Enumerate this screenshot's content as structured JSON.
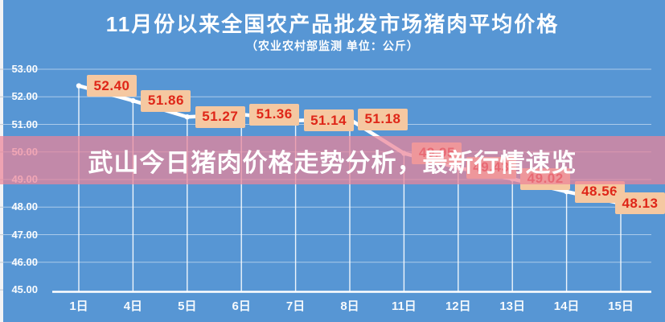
{
  "chart": {
    "title": "11月份以来全国农产品批发市场猪肉平均价格",
    "subtitle": "（农业农村部监测 单位：公斤）"
  },
  "overlay": {
    "headline": "武山今日猪肉价格走势分析，最新行情速览"
  },
  "chart_data": {
    "type": "line",
    "title": "11月份以来全国农产品批发市场猪肉平均价格",
    "subtitle": "（农业农村部监测 单位：公斤）",
    "categories": [
      "1日",
      "4日",
      "5日",
      "6日",
      "7日",
      "8日",
      "11日",
      "12日",
      "13日",
      "14日",
      "15日"
    ],
    "values": [
      52.4,
      51.86,
      51.27,
      51.36,
      51.14,
      51.18,
      49.95,
      49.43,
      49.02,
      48.56,
      48.13
    ],
    "data_labels": [
      "52.40",
      "51.86",
      "51.27",
      "51.36",
      "51.14",
      "51.18",
      "49.95",
      "49.43",
      "49.02",
      "48.56",
      "48.13"
    ],
    "labels_obscured_by_overlay_indexes": [
      6,
      7
    ],
    "y_ticks": [
      "53.00",
      "52.00",
      "51.00",
      "50.00",
      "49.00",
      "48.00",
      "47.00",
      "46.00",
      "45.00"
    ],
    "ylim": [
      45,
      53
    ],
    "grid": true,
    "legend": false,
    "colors": {
      "background": "#5796D4",
      "line": "#FFFFFF",
      "grid": "rgba(255,255,255,0.5)",
      "drop_line": "rgba(255,255,255,0.9)",
      "axis": "#FFFFFF",
      "label_box": "#F5C8A1",
      "label_text": "#DF2618",
      "overlay_band": "rgba(236,131,153,0.72)",
      "overlay_text": "#FFFFFF",
      "tick_text": "#FFFFFF"
    }
  }
}
